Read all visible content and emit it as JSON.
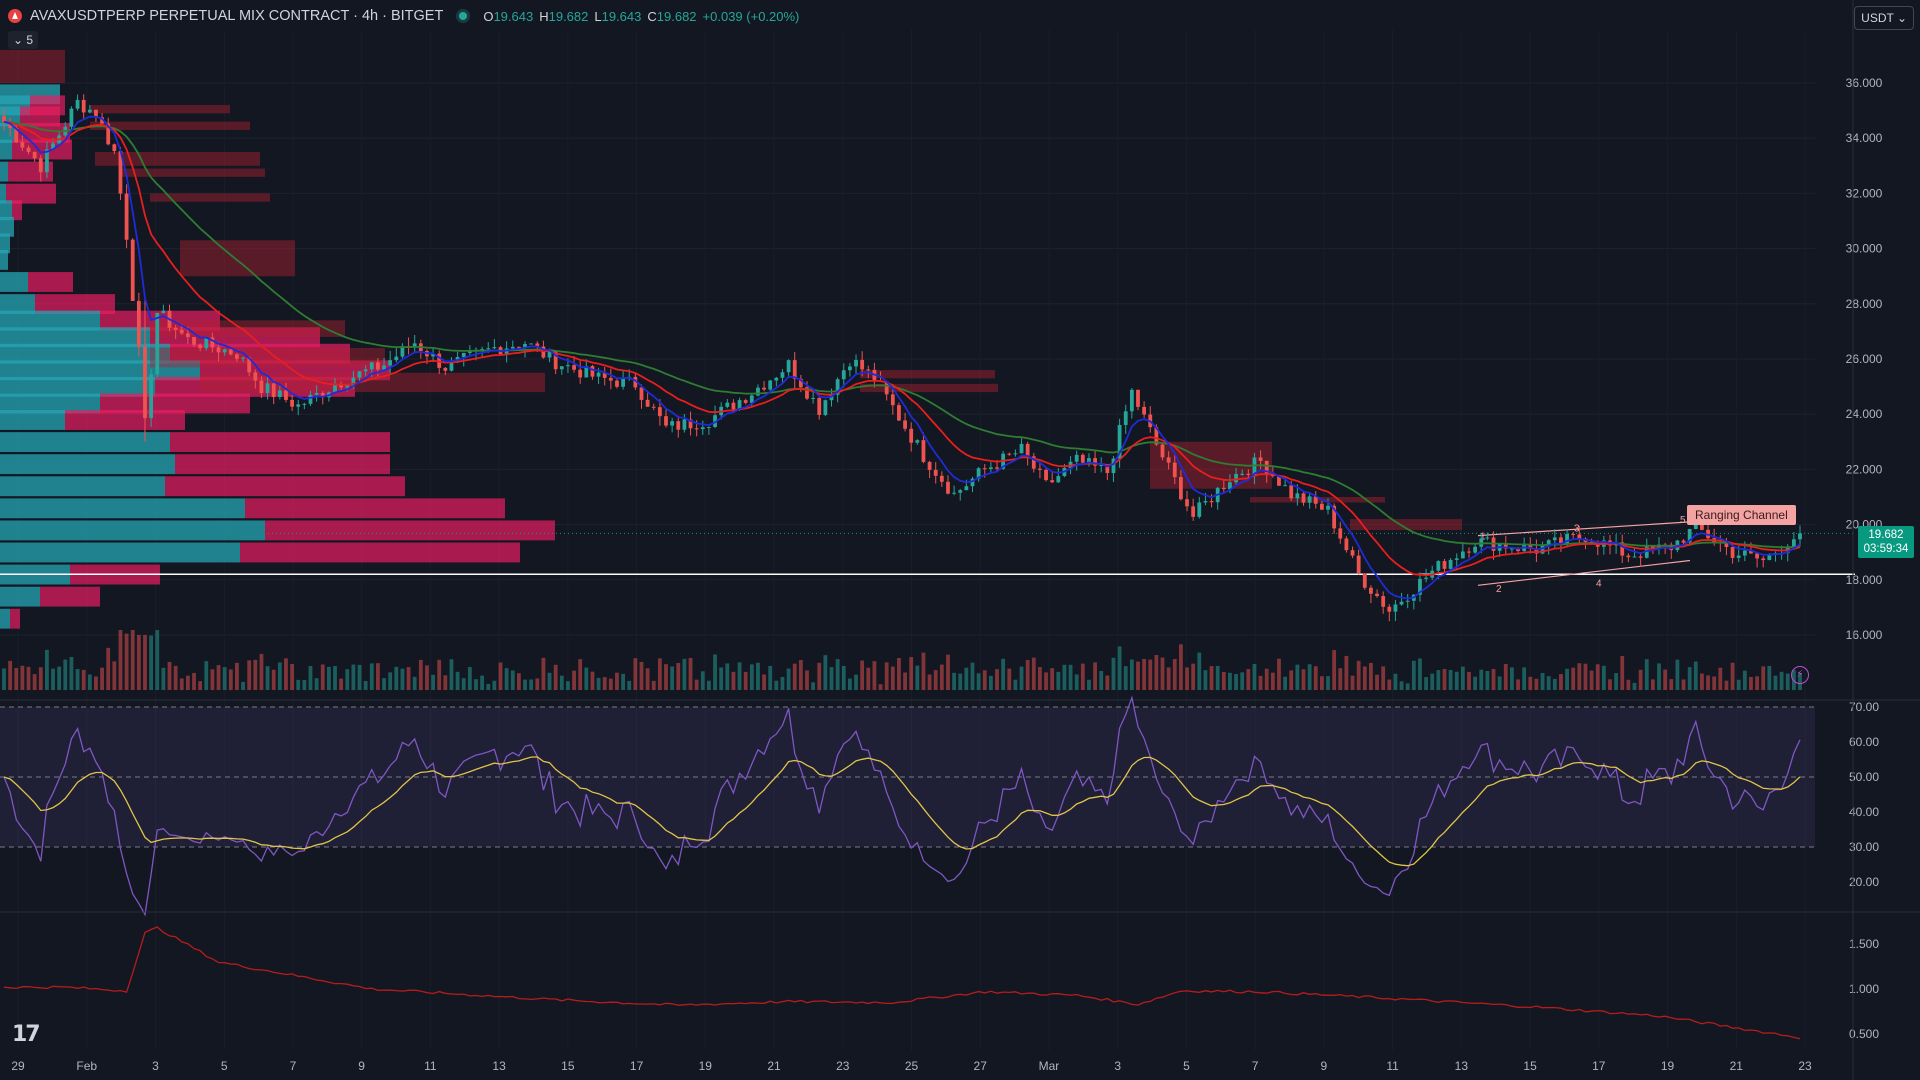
{
  "header": {
    "title": "AVAXUSDTPERP PERPETUAL MIX CONTRACT · 4h · BITGET",
    "ohlc": [
      {
        "k": "O",
        "v": "19.643"
      },
      {
        "k": "H",
        "v": "19.682"
      },
      {
        "k": "L",
        "v": "19.643"
      },
      {
        "k": "C",
        "v": "19.682"
      },
      {
        "k": "",
        "v": "+0.039 (+0.20%)"
      }
    ],
    "collapse_label": "5",
    "currency": "USDT"
  },
  "last_price": {
    "price": "19.682",
    "countdown": "03:59:34"
  },
  "annotation": "Ranging Channel",
  "colors": {
    "bull": "#26a69a",
    "bear": "#ef5350",
    "ema_fast": "#1f2bd6",
    "ema_mid": "#e91e1e",
    "ema_slow": "#2e7d32",
    "rsi": "#7e57c2",
    "rsi_ma": "#e0c44a",
    "hv": "#b71c1c"
  },
  "chart_data": {
    "type": "line",
    "x_ticks": [
      "29",
      "Feb",
      "3",
      "5",
      "7",
      "9",
      "11",
      "13",
      "15",
      "17",
      "19",
      "21",
      "23",
      "25",
      "27",
      "Mar",
      "3",
      "5",
      "7",
      "9",
      "11",
      "13",
      "15",
      "17",
      "19",
      "21",
      "23"
    ],
    "price_axis": {
      "ticks": [
        "36.000",
        "34.000",
        "32.000",
        "30.000",
        "28.000",
        "26.000",
        "24.000",
        "22.000",
        "20.000",
        "18.000",
        "16.000"
      ],
      "range": [
        14.8,
        37.3
      ]
    },
    "price_anchors": [
      [
        0,
        34.6
      ],
      [
        6,
        33.0
      ],
      [
        12,
        35.3
      ],
      [
        15,
        34.9
      ],
      [
        18,
        33.5
      ],
      [
        20,
        30.5
      ],
      [
        22,
        26.2
      ],
      [
        23,
        23.6
      ],
      [
        25,
        27.7
      ],
      [
        30,
        26.7
      ],
      [
        38,
        26.2
      ],
      [
        42,
        25.0
      ],
      [
        48,
        24.3
      ],
      [
        55,
        25.2
      ],
      [
        62,
        25.8
      ],
      [
        67,
        26.6
      ],
      [
        72,
        25.7
      ],
      [
        80,
        26.4
      ],
      [
        85,
        26.6
      ],
      [
        90,
        25.9
      ],
      [
        97,
        25.3
      ],
      [
        103,
        25.1
      ],
      [
        108,
        23.5
      ],
      [
        115,
        23.8
      ],
      [
        122,
        24.8
      ],
      [
        128,
        25.8
      ],
      [
        133,
        24.2
      ],
      [
        138,
        26.0
      ],
      [
        142,
        25.3
      ],
      [
        150,
        22.5
      ],
      [
        155,
        21.1
      ],
      [
        160,
        22.0
      ],
      [
        166,
        22.7
      ],
      [
        170,
        21.4
      ],
      [
        175,
        22.3
      ],
      [
        180,
        21.9
      ],
      [
        184,
        24.8
      ],
      [
        188,
        22.9
      ],
      [
        194,
        20.3
      ],
      [
        200,
        21.7
      ],
      [
        205,
        22.3
      ],
      [
        210,
        21.1
      ],
      [
        216,
        20.5
      ],
      [
        221,
        18.2
      ],
      [
        226,
        16.9
      ],
      [
        233,
        18.3
      ],
      [
        240,
        19.4
      ],
      [
        250,
        19.1
      ],
      [
        258,
        19.6
      ],
      [
        265,
        18.9
      ],
      [
        272,
        19.2
      ],
      [
        276,
        19.9
      ],
      [
        282,
        19.0
      ],
      [
        287,
        18.7
      ],
      [
        293,
        19.7
      ]
    ],
    "rsi_axis": {
      "ticks": [
        "70.00",
        "60.00",
        "50.00",
        "40.00",
        "30.00",
        "20.00"
      ],
      "range": [
        15,
        73
      ],
      "upper_band": 70,
      "lower_band": 30
    },
    "hv_axis": {
      "ticks": [
        "1.500",
        "1.000",
        "0.500"
      ],
      "range": [
        0.35,
        1.85
      ]
    },
    "support_level": 18.2,
    "last_value": 19.682
  }
}
